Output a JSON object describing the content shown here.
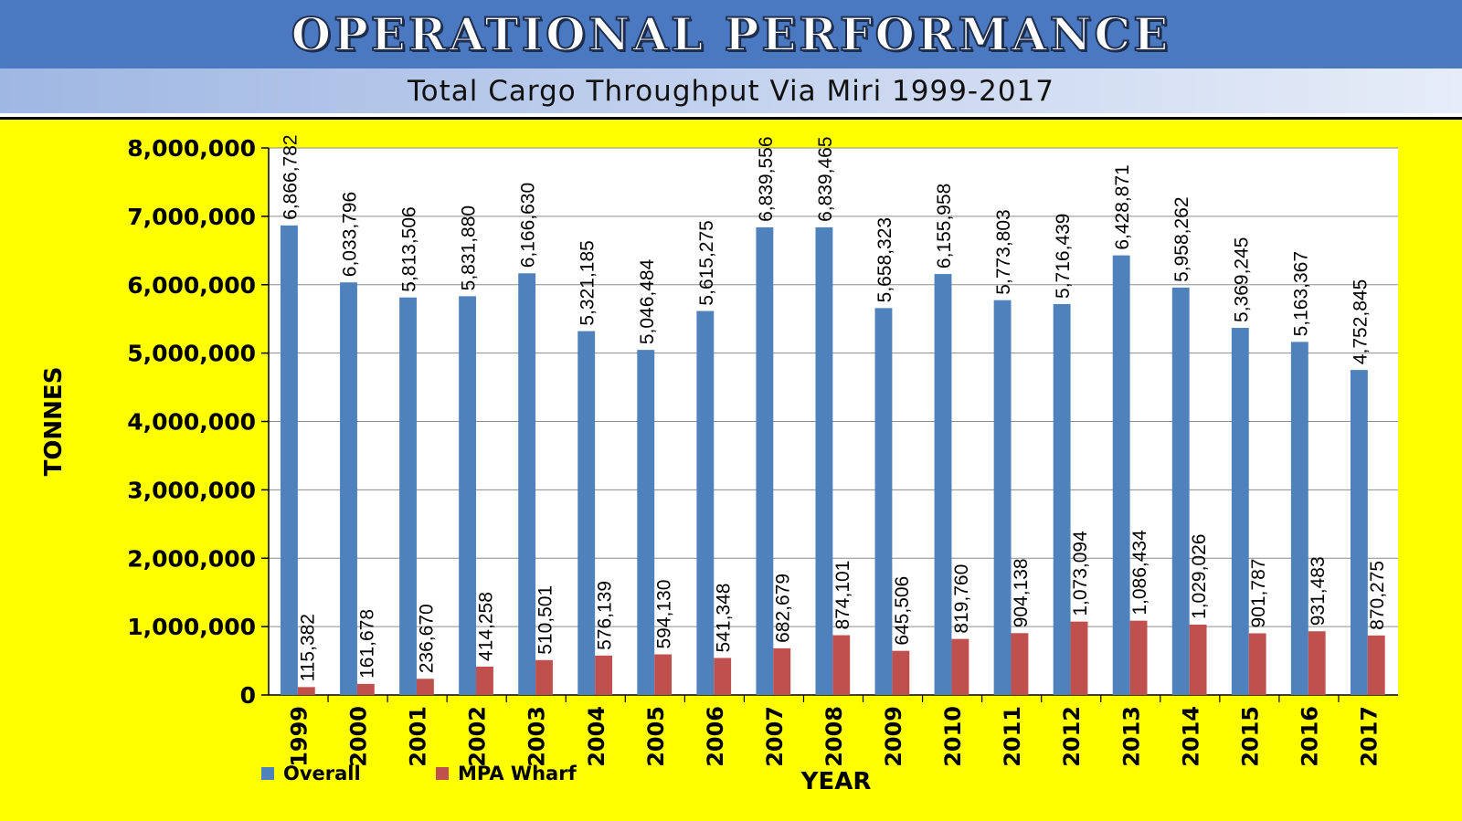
{
  "header": {
    "title": "OPERATIONAL PERFORMANCE",
    "subtitle": "Total Cargo Throughput Via Miri 1999-2017"
  },
  "colors": {
    "panel_background": "#ffff00",
    "title_bar": "#4a79c1",
    "overall_bar": "#4f81bd",
    "wharf_bar": "#c0504d"
  },
  "chart_data": {
    "type": "bar",
    "xlabel": "YEAR",
    "ylabel": "TONNES",
    "ylim": [
      0,
      8000000
    ],
    "yticks": [
      0,
      1000000,
      2000000,
      3000000,
      4000000,
      5000000,
      6000000,
      7000000,
      8000000
    ],
    "ytick_labels": [
      "0",
      "1,000,000",
      "2,000,000",
      "3,000,000",
      "4,000,000",
      "5,000,000",
      "6,000,000",
      "7,000,000",
      "8,000,000"
    ],
    "grid": true,
    "legend_position": "bottom-left",
    "categories": [
      "1999",
      "2000",
      "2001",
      "2002",
      "2003",
      "2004",
      "2005",
      "2006",
      "2007",
      "2008",
      "2009",
      "2010",
      "2011",
      "2012",
      "2013",
      "2014",
      "2015",
      "2016",
      "2017"
    ],
    "series": [
      {
        "name": "Overall",
        "values": [
          6866782,
          6033796,
          5813506,
          5831880,
          6166630,
          5321185,
          5046484,
          5615275,
          6839556,
          6839465,
          5658323,
          6155958,
          5773803,
          5716439,
          6428871,
          5958262,
          5369245,
          5163367,
          4752845
        ],
        "labels": [
          "6,866,782",
          "6,033,796",
          "5,813,506",
          "5,831,880",
          "6,166,630",
          "5,321,185",
          "5,046,484",
          "5,615,275",
          "6,839,556",
          "6,839,465",
          "5,658,323",
          "6,155,958",
          "5,773,803",
          "5,716,439",
          "6,428,871",
          "5,958,262",
          "5,369,245",
          "5,163,367",
          "4,752,845"
        ]
      },
      {
        "name": "MPA Wharf",
        "values": [
          115382,
          161678,
          236670,
          414258,
          510501,
          576139,
          594130,
          541348,
          682679,
          874101,
          645506,
          819760,
          904138,
          1073094,
          1086434,
          1029026,
          901787,
          931483,
          870275
        ],
        "labels": [
          "115,382",
          "161,678",
          "236,670",
          "414,258",
          "510,501",
          "576,139",
          "594,130",
          "541,348",
          "682,679",
          "874,101",
          "645,506",
          "819,760",
          "904,138",
          "1,073,094",
          "1,086,434",
          "1,029,026",
          "901,787",
          "931,483",
          "870,275"
        ]
      }
    ]
  }
}
